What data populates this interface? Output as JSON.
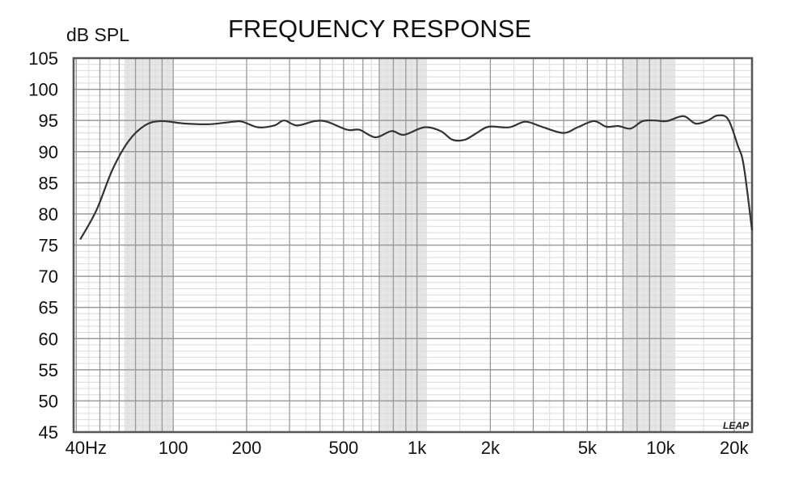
{
  "chart_data": {
    "type": "line",
    "title": "FREQUENCY RESPONSE",
    "ylabel": "dB SPL",
    "xlabel": "",
    "x_scale": "log",
    "xlim": [
      39,
      23700
    ],
    "ylim": [
      45,
      105
    ],
    "grid": true,
    "x_tick_labels": [
      "40Hz",
      "100",
      "200",
      "500",
      "1k",
      "2k",
      "5k",
      "10k",
      "20k"
    ],
    "x_tick_values": [
      40,
      100,
      200,
      500,
      1000,
      2000,
      5000,
      10000,
      20000
    ],
    "y_ticks": [
      45,
      50,
      55,
      60,
      65,
      70,
      75,
      80,
      85,
      90,
      95,
      100,
      105
    ],
    "watermark": "LEAP",
    "colors": {
      "line": "#333333",
      "grid_major": "#9a9a9a",
      "grid_minor": "#dcdcdc",
      "band": "#e6e6e6"
    },
    "series": [
      {
        "x": [
          41.5,
          48.4,
          56.3,
          65.6,
          76.5,
          89,
          112,
          141,
          177,
          192,
          223,
          260,
          285,
          322,
          381,
          427,
          518,
          581,
          676,
          786,
          885,
          1070,
          1250,
          1400,
          1570,
          1760,
          1970,
          2390,
          2780,
          3250,
          3980,
          4560,
          5320,
          5980,
          6710,
          7530,
          8430,
          9460,
          10600,
          12400,
          13900,
          15600,
          17100,
          18900,
          20700,
          21900,
          23700
        ],
        "y": [
          75.9,
          80.6,
          87.1,
          91.7,
          94.2,
          94.9,
          94.5,
          94.4,
          94.8,
          94.8,
          93.9,
          94.2,
          95,
          94.2,
          94.9,
          94.8,
          93.5,
          93.5,
          92.3,
          93.3,
          92.7,
          93.9,
          93.3,
          91.9,
          91.9,
          93,
          94,
          93.9,
          94.8,
          94,
          93,
          93.9,
          94.9,
          94,
          94.1,
          93.7,
          94.9,
          95,
          94.9,
          95.7,
          94.5,
          95,
          95.8,
          95.2,
          91,
          87.8,
          77.4
        ]
      }
    ]
  }
}
